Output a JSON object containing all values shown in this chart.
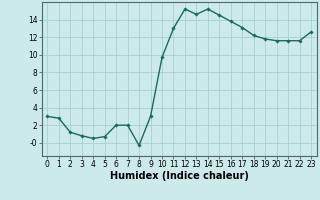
{
  "x": [
    0,
    1,
    2,
    3,
    4,
    5,
    6,
    7,
    8,
    9,
    10,
    11,
    12,
    13,
    14,
    15,
    16,
    17,
    18,
    19,
    20,
    21,
    22,
    23
  ],
  "y": [
    3,
    2.8,
    1.2,
    0.8,
    0.5,
    0.7,
    2.0,
    2.0,
    -0.3,
    3.0,
    9.7,
    13.0,
    15.2,
    14.6,
    15.2,
    14.5,
    13.8,
    13.1,
    12.2,
    11.8,
    11.6,
    11.6,
    11.6,
    12.6
  ],
  "line_color": "#1a6b5a",
  "marker": "D",
  "marker_size": 1.8,
  "bg_color": "#cceaea",
  "grid_color": "#aad0d0",
  "xlabel": "Humidex (Indice chaleur)",
  "xlabel_fontsize": 7.0,
  "yticks": [
    0,
    2,
    4,
    6,
    8,
    10,
    12,
    14
  ],
  "ytick_labels": [
    "-0",
    "2",
    "4",
    "6",
    "8",
    "10",
    "12",
    "14"
  ],
  "xlim": [
    -0.5,
    23.5
  ],
  "ylim": [
    -1.5,
    16.0
  ],
  "xticks": [
    0,
    1,
    2,
    3,
    4,
    5,
    6,
    7,
    8,
    9,
    10,
    11,
    12,
    13,
    14,
    15,
    16,
    17,
    18,
    19,
    20,
    21,
    22,
    23
  ],
  "tick_fontsize": 5.5,
  "linewidth": 1.0
}
